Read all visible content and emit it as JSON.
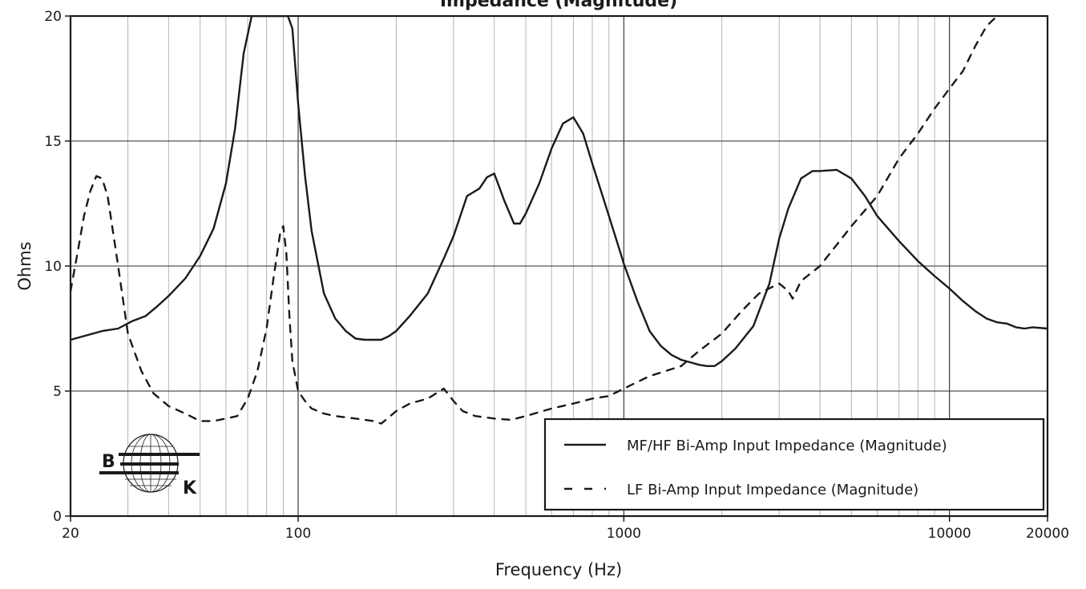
{
  "chart_data": {
    "type": "line",
    "title": "Impedance (Magnitude)",
    "xlabel": "Frequency (Hz)",
    "ylabel": "Ohms",
    "xscale": "log",
    "xlim": [
      20,
      20000
    ],
    "ylim": [
      0,
      20
    ],
    "grid": true,
    "x_tick_labels": [
      "20",
      "100",
      "1000",
      "10000",
      "20000"
    ],
    "x_ticks": [
      20,
      100,
      1000,
      10000,
      20000
    ],
    "y_tick_labels": [
      "0",
      "5",
      "10",
      "15",
      "20"
    ],
    "y_ticks": [
      0,
      5,
      10,
      15,
      20
    ],
    "legend_position": "bottom-right",
    "logo": {
      "letters": [
        "B",
        "K"
      ]
    },
    "series": [
      {
        "name": "MF/HF Bi-Amp Input Impedance (Magnitude)",
        "style": "solid",
        "x": [
          20,
          22,
          25,
          28,
          31,
          34,
          37,
          40,
          45,
          50,
          55,
          60,
          64,
          68,
          72,
          75,
          79,
          83,
          87,
          90,
          93,
          96,
          100,
          105,
          110,
          120,
          130,
          140,
          150,
          160,
          170,
          180,
          190,
          200,
          220,
          250,
          280,
          300,
          330,
          360,
          380,
          400,
          430,
          460,
          480,
          500,
          550,
          600,
          650,
          700,
          750,
          800,
          900,
          1000,
          1100,
          1200,
          1300,
          1400,
          1500,
          1600,
          1700,
          1800,
          1900,
          2000,
          2200,
          2500,
          2800,
          3000,
          3200,
          3500,
          3800,
          4000,
          4500,
          5000,
          5500,
          6000,
          7000,
          8000,
          9000,
          10000,
          11000,
          12000,
          13000,
          14000,
          15000,
          16000,
          17000,
          18000,
          20000
        ],
        "y": [
          7.05,
          7.2,
          7.4,
          7.5,
          7.8,
          8.0,
          8.4,
          8.8,
          9.5,
          10.4,
          11.5,
          13.3,
          15.5,
          18.5,
          20,
          20,
          20,
          20,
          20,
          20,
          20,
          19.5,
          16.5,
          13.6,
          11.4,
          8.9,
          7.9,
          7.4,
          7.1,
          7.05,
          7.05,
          7.05,
          7.2,
          7.4,
          8.0,
          8.9,
          10.3,
          11.2,
          12.8,
          13.1,
          13.55,
          13.7,
          12.6,
          11.7,
          11.7,
          12.1,
          13.3,
          14.7,
          15.7,
          15.95,
          15.3,
          14.1,
          12.0,
          10.1,
          8.6,
          7.4,
          6.8,
          6.45,
          6.25,
          6.15,
          6.05,
          6.0,
          6.0,
          6.2,
          6.7,
          7.6,
          9.3,
          11.1,
          12.3,
          13.5,
          13.8,
          13.8,
          13.85,
          13.5,
          12.8,
          12.0,
          11.0,
          10.2,
          9.6,
          9.1,
          8.6,
          8.2,
          7.9,
          7.75,
          7.7,
          7.55,
          7.5,
          7.55,
          7.5
        ]
      },
      {
        "name": "LF Bi-Amp Input Impedance (Magnitude)",
        "style": "dashed",
        "x": [
          20,
          21,
          22,
          23,
          24,
          25,
          26,
          28,
          30,
          33,
          36,
          40,
          45,
          50,
          55,
          60,
          65,
          70,
          75,
          80,
          84,
          88,
          90,
          92,
          94,
          96,
          100,
          105,
          110,
          120,
          130,
          150,
          170,
          180,
          200,
          220,
          250,
          280,
          300,
          320,
          350,
          400,
          450,
          500,
          600,
          700,
          800,
          900,
          1000,
          1200,
          1500,
          1700,
          2000,
          2300,
          2600,
          3000,
          3200,
          3300,
          3500,
          4000,
          5000,
          6000,
          7000,
          8000,
          9000,
          10000,
          11000,
          12000,
          13000,
          14000
        ],
        "y": [
          9.0,
          10.5,
          12.0,
          13.0,
          13.6,
          13.5,
          12.8,
          10.0,
          7.3,
          5.8,
          4.9,
          4.4,
          4.1,
          3.8,
          3.8,
          3.9,
          4.0,
          4.7,
          5.8,
          7.5,
          9.5,
          11.3,
          11.6,
          10.5,
          8.0,
          6.2,
          5.0,
          4.6,
          4.3,
          4.1,
          4.0,
          3.9,
          3.8,
          3.7,
          4.2,
          4.5,
          4.7,
          5.1,
          4.6,
          4.2,
          4.0,
          3.9,
          3.85,
          4.0,
          4.3,
          4.5,
          4.7,
          4.8,
          5.1,
          5.6,
          6.0,
          6.6,
          7.3,
          8.2,
          8.9,
          9.3,
          9.0,
          8.7,
          9.4,
          10.0,
          11.6,
          12.8,
          14.3,
          15.3,
          16.3,
          17.1,
          17.8,
          18.8,
          19.6,
          20.0
        ]
      }
    ]
  }
}
